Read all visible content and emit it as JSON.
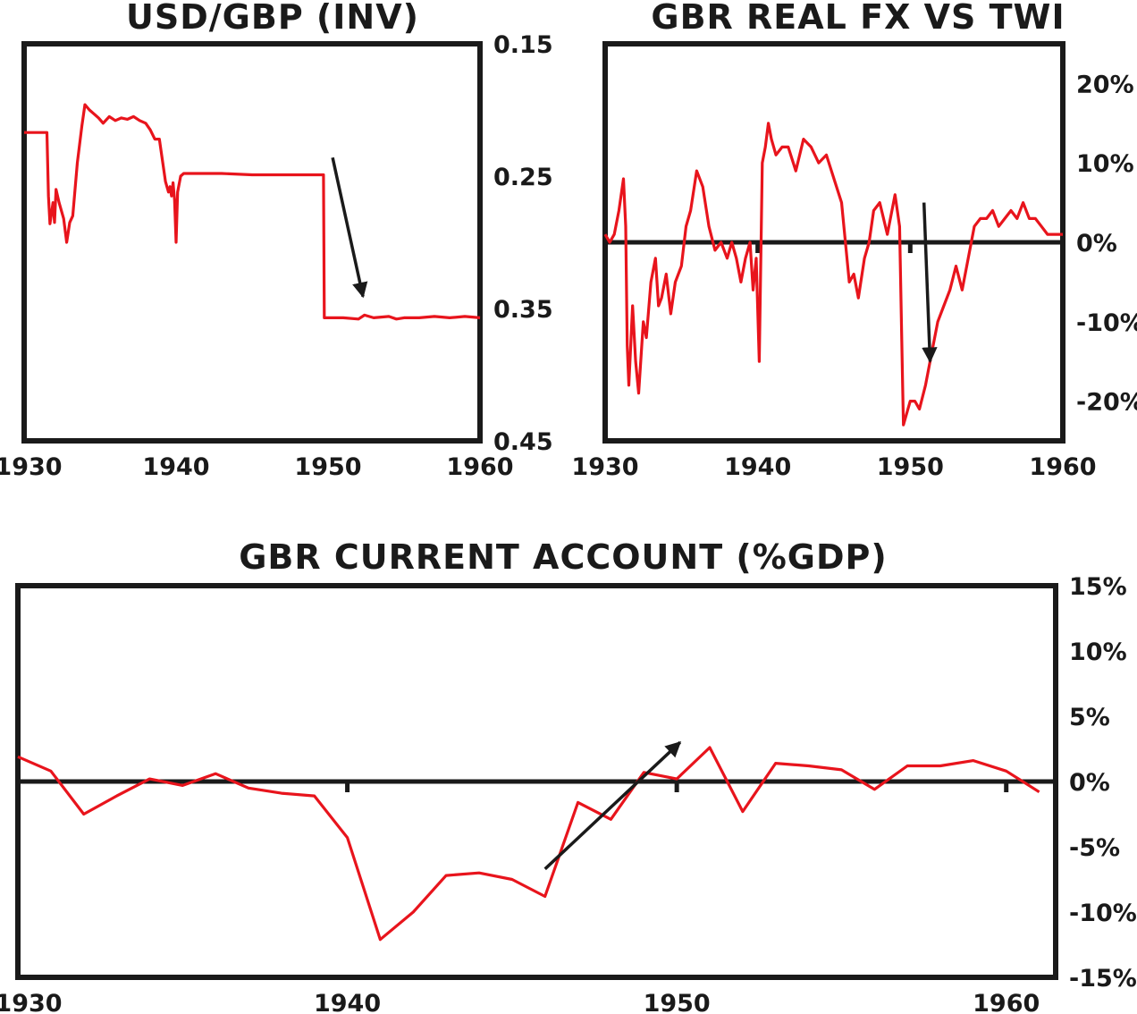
{
  "colors": {
    "series": "#e8141c",
    "axis": "#1a1a1a",
    "background": "#ffffff"
  },
  "chart_data": [
    {
      "id": "usd-gbp",
      "type": "line",
      "title": "USD/GBP (INV)",
      "y_axis": "right",
      "y_inverted": true,
      "xlim": [
        1930,
        1960
      ],
      "ylim": [
        0.15,
        0.45
      ],
      "x_ticks": [
        {
          "value": 1930,
          "label": "1930"
        },
        {
          "value": 1940,
          "label": "1940"
        },
        {
          "value": 1950,
          "label": "1950"
        },
        {
          "value": 1960,
          "label": "1960"
        }
      ],
      "y_ticks": [
        {
          "value": 0.15,
          "label": "0.15"
        },
        {
          "value": 0.25,
          "label": "0.25"
        },
        {
          "value": 0.35,
          "label": "0.35"
        },
        {
          "value": 0.45,
          "label": "0.45"
        }
      ],
      "zero_line": false,
      "series": [
        {
          "x": [
            1930,
            1931.5,
            1931.6,
            1931.7,
            1931.9,
            1932.0,
            1932.1,
            1932.3,
            1932.6,
            1932.8,
            1933.0,
            1933.2,
            1933.5,
            1933.8,
            1934.0,
            1934.3,
            1934.6,
            1934.9,
            1935.2,
            1935.6,
            1936.0,
            1936.4,
            1936.8,
            1937.2,
            1937.6,
            1938.0,
            1938.3,
            1938.6,
            1938.9,
            1939.3,
            1939.5,
            1939.6,
            1939.7,
            1939.8,
            1939.9,
            1940.0,
            1940.1,
            1940.3,
            1940.5,
            1941,
            1943,
            1945,
            1947,
            1949.7,
            1949.75,
            1950.3,
            1951,
            1952,
            1952.4,
            1953,
            1954,
            1954.5,
            1955,
            1956,
            1957,
            1958,
            1959,
            1960
          ],
          "y": [
            0.217,
            0.217,
            0.265,
            0.286,
            0.27,
            0.285,
            0.26,
            0.27,
            0.282,
            0.3,
            0.285,
            0.28,
            0.24,
            0.212,
            0.196,
            0.2,
            0.203,
            0.206,
            0.21,
            0.205,
            0.208,
            0.206,
            0.207,
            0.205,
            0.208,
            0.21,
            0.215,
            0.222,
            0.222,
            0.254,
            0.262,
            0.258,
            0.265,
            0.255,
            0.268,
            0.3,
            0.262,
            0.25,
            0.248,
            0.248,
            0.248,
            0.249,
            0.249,
            0.249,
            0.357,
            0.357,
            0.357,
            0.358,
            0.355,
            0.357,
            0.356,
            0.358,
            0.357,
            0.357,
            0.356,
            0.357,
            0.356,
            0.357
          ],
          "color": "#e8141c"
        }
      ],
      "annotations": [
        {
          "type": "arrow",
          "direction": "down",
          "from": [
            1950.3,
            0.236
          ],
          "to": [
            1952.3,
            0.341
          ]
        }
      ]
    },
    {
      "id": "gbr-real-fx",
      "type": "line",
      "title": "GBR REAL FX VS TWI",
      "y_axis": "right",
      "xlim": [
        1930,
        1960
      ],
      "ylim": [
        -25,
        25
      ],
      "x_ticks": [
        {
          "value": 1930,
          "label": "1930"
        },
        {
          "value": 1940,
          "label": "1940"
        },
        {
          "value": 1950,
          "label": "1950"
        },
        {
          "value": 1960,
          "label": "1960"
        }
      ],
      "y_ticks": [
        {
          "value": 20,
          "label": "20%"
        },
        {
          "value": 10,
          "label": "10%"
        },
        {
          "value": 0,
          "label": "0%"
        },
        {
          "value": -10,
          "label": "-10%"
        },
        {
          "value": -20,
          "label": "-20%"
        }
      ],
      "zero_line": true,
      "series": [
        {
          "x": [
            1930,
            1930.3,
            1930.6,
            1930.9,
            1931.2,
            1931.35,
            1931.45,
            1931.55,
            1931.8,
            1932.0,
            1932.2,
            1932.5,
            1932.7,
            1933.0,
            1933.3,
            1933.5,
            1933.7,
            1934.0,
            1934.3,
            1934.6,
            1935.0,
            1935.3,
            1935.6,
            1936.0,
            1936.4,
            1936.8,
            1937.2,
            1937.6,
            1938.0,
            1938.3,
            1938.6,
            1938.9,
            1939.2,
            1939.5,
            1939.7,
            1939.9,
            1940.1,
            1940.3,
            1940.5,
            1940.7,
            1940.9,
            1941.2,
            1941.6,
            1942.0,
            1942.5,
            1943.0,
            1943.5,
            1944.0,
            1944.5,
            1945.0,
            1945.5,
            1946.0,
            1946.3,
            1946.6,
            1947.0,
            1947.3,
            1947.6,
            1948.0,
            1948.5,
            1949.0,
            1949.3,
            1949.5,
            1949.55,
            1949.7,
            1950.0,
            1950.3,
            1950.6,
            1951.0,
            1951.4,
            1951.8,
            1952.2,
            1952.6,
            1953.0,
            1953.4,
            1953.8,
            1954.2,
            1954.6,
            1955.0,
            1955.4,
            1955.8,
            1956.2,
            1956.6,
            1957.0,
            1957.4,
            1957.8,
            1958.2,
            1958.6,
            1959.0,
            1959.4,
            1959.8,
            1960.0
          ],
          "y": [
            1,
            0,
            1,
            4,
            8,
            2,
            -13,
            -18,
            -8,
            -15,
            -19,
            -10,
            -12,
            -5,
            -2,
            -8,
            -7,
            -4,
            -9,
            -5,
            -3,
            2,
            4,
            9,
            7,
            2,
            -1,
            0,
            -2,
            0,
            -2,
            -5,
            -2,
            0,
            -6,
            -2,
            -15,
            10,
            12,
            15,
            13,
            11,
            12,
            12,
            9,
            13,
            12,
            10,
            11,
            8,
            5,
            -5,
            -4,
            -7,
            -2,
            0,
            4,
            5,
            1,
            6,
            2,
            -18,
            -23,
            -22,
            -20,
            -20,
            -21,
            -18,
            -14,
            -10,
            -8,
            -6,
            -3,
            -6,
            -2,
            2,
            3,
            3,
            4,
            2,
            3,
            4,
            3,
            5,
            3,
            3,
            2,
            1,
            1,
            1,
            1
          ],
          "color": "#e8141c"
        }
      ],
      "annotations": [
        {
          "type": "arrow",
          "direction": "down",
          "from": [
            1950.9,
            5
          ],
          "to": [
            1951.3,
            -15
          ]
        }
      ]
    },
    {
      "id": "gbr-current-account",
      "type": "line",
      "title": "GBR CURRENT ACCOUNT (%GDP)",
      "y_axis": "right",
      "xlim": [
        1930,
        1961.5
      ],
      "ylim": [
        -15,
        15
      ],
      "x_ticks": [
        {
          "value": 1930,
          "label": "1930"
        },
        {
          "value": 1940,
          "label": "1940"
        },
        {
          "value": 1950,
          "label": "1950"
        },
        {
          "value": 1960,
          "label": "1960"
        }
      ],
      "y_ticks": [
        {
          "value": 15,
          "label": "15%"
        },
        {
          "value": 10,
          "label": "10%"
        },
        {
          "value": 5,
          "label": "5%"
        },
        {
          "value": 0,
          "label": "0%"
        },
        {
          "value": -5,
          "label": "-5%"
        },
        {
          "value": -10,
          "label": "-10%"
        },
        {
          "value": -15,
          "label": "-15%"
        }
      ],
      "zero_line": true,
      "series": [
        {
          "x": [
            1930,
            1931,
            1932,
            1933,
            1934,
            1935,
            1936,
            1937,
            1938,
            1939,
            1940,
            1941,
            1942,
            1943,
            1944,
            1945,
            1946,
            1947,
            1948,
            1949,
            1950,
            1951,
            1952,
            1953,
            1954,
            1955,
            1956,
            1957,
            1958,
            1959,
            1960,
            1961
          ],
          "y": [
            1.9,
            0.8,
            -2.5,
            -1.1,
            0.2,
            -0.3,
            0.6,
            -0.5,
            -0.9,
            -1.1,
            -4.3,
            -12.1,
            -10,
            -7.2,
            -7.0,
            -7.5,
            -8.8,
            -1.6,
            -2.9,
            0.7,
            0.2,
            2.6,
            -2.3,
            1.4,
            1.2,
            0.9,
            -0.6,
            1.2,
            1.2,
            1.6,
            0.8,
            -0.8
          ],
          "color": "#e8141c"
        }
      ],
      "annotations": [
        {
          "type": "arrow",
          "direction": "up",
          "from": [
            1946,
            -6.7
          ],
          "to": [
            1950.1,
            3.0
          ]
        }
      ]
    }
  ]
}
